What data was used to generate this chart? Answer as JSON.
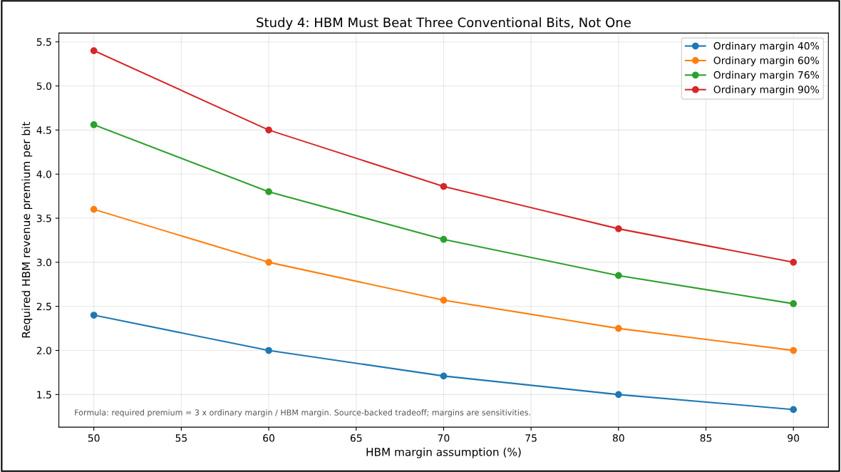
{
  "chart_data": {
    "type": "line",
    "title": "Study 4: HBM Must Beat Three Conventional Bits, Not One",
    "xlabel": "HBM margin assumption (%)",
    "ylabel": "Required HBM revenue premium per bit",
    "x": [
      50,
      60,
      70,
      80,
      90
    ],
    "series": [
      {
        "name": "Ordinary margin 40%",
        "color": "#1f77b4",
        "values": [
          2.4,
          2.0,
          1.71,
          1.5,
          1.33
        ]
      },
      {
        "name": "Ordinary margin 60%",
        "color": "#ff7f0e",
        "values": [
          3.6,
          3.0,
          2.57,
          2.25,
          2.0
        ]
      },
      {
        "name": "Ordinary margin 76%",
        "color": "#2ca02c",
        "values": [
          4.56,
          3.8,
          3.26,
          2.85,
          2.53
        ]
      },
      {
        "name": "Ordinary margin 90%",
        "color": "#d62728",
        "values": [
          5.4,
          4.5,
          3.86,
          3.38,
          3.0
        ]
      }
    ],
    "xlim": [
      48,
      92
    ],
    "xticks": [
      50,
      55,
      60,
      65,
      70,
      75,
      80,
      85,
      90
    ],
    "ylim": [
      1.13,
      5.6
    ],
    "yticks": [
      {
        "value": 1.5,
        "label": "1.5"
      },
      {
        "value": 2.0,
        "label": "2.0"
      },
      {
        "value": 2.5,
        "label": "2.5"
      },
      {
        "value": 3.0,
        "label": "3.0"
      },
      {
        "value": 3.5,
        "label": "3.5"
      },
      {
        "value": 4.0,
        "label": "4.0"
      },
      {
        "value": 4.5,
        "label": "4.5"
      },
      {
        "value": 5.0,
        "label": "5.0"
      },
      {
        "value": 5.5,
        "label": "5.5"
      }
    ],
    "annotations": [
      "Formula: required premium = 3 x ordinary margin / HBM margin. Source-backed tradeoff; margins are sensitivities."
    ],
    "grid": true,
    "legend": "top right",
    "marker": "circle",
    "line_style": "solid"
  }
}
